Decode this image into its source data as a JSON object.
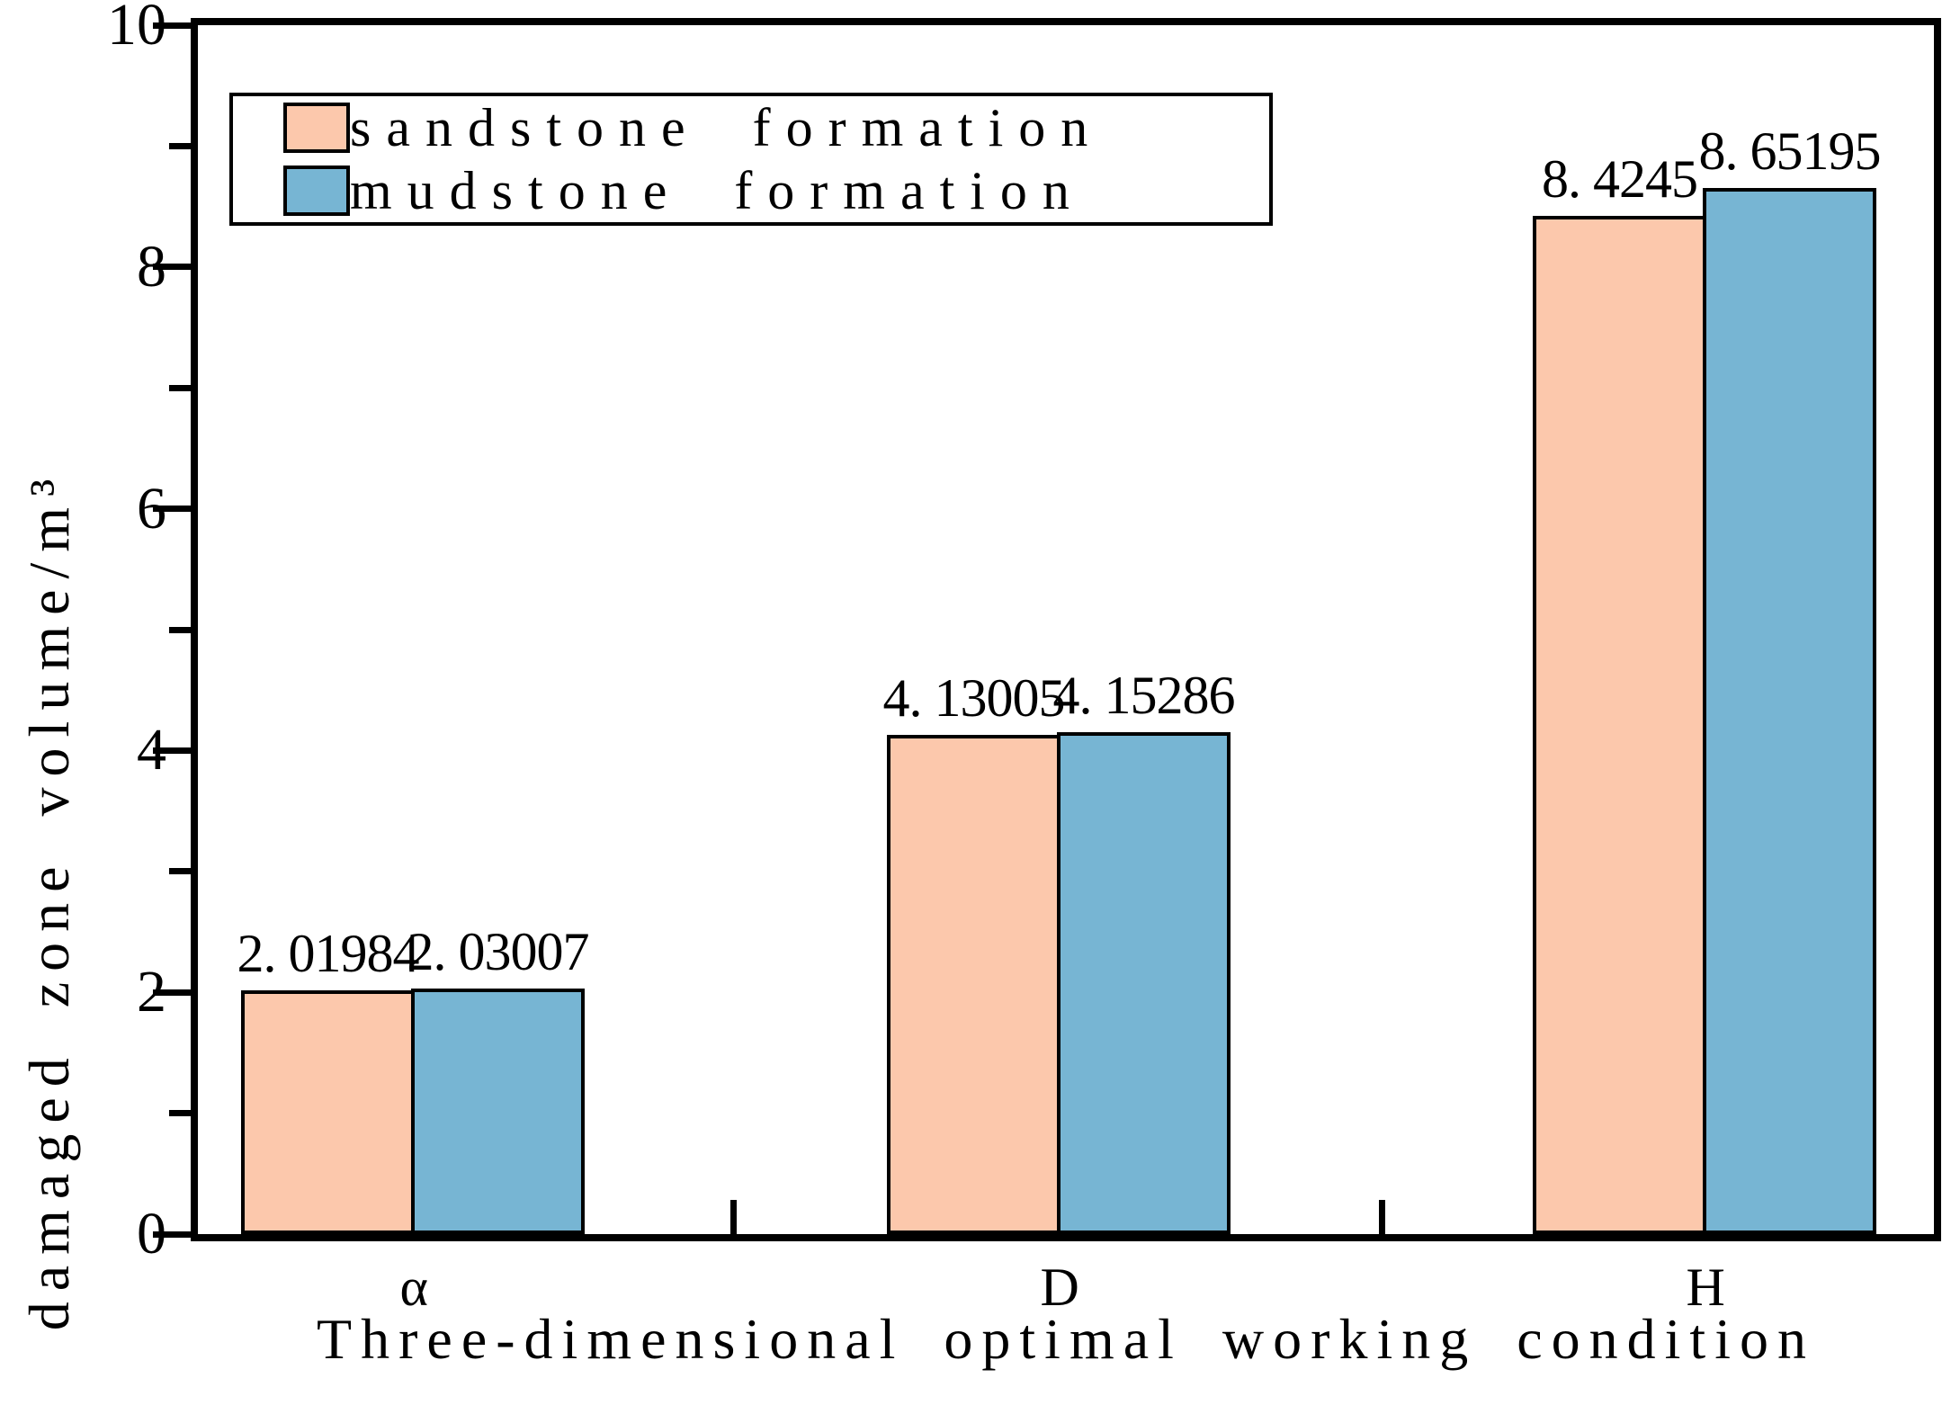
{
  "chart_data": {
    "type": "bar",
    "title": "",
    "xlabel": "Three-dimensional optimal working condition",
    "ylabel": "damaged zone volume/m³",
    "categories": [
      "α",
      "D",
      "H"
    ],
    "series": [
      {
        "name": "sandstone formation",
        "color": "#FCC8AC",
        "values": [
          2.01984,
          4.13005,
          8.4245
        ],
        "labels": [
          "2. 01984",
          "4. 13005",
          "8. 4245"
        ]
      },
      {
        "name": "mudstone formation",
        "color": "#77B5D3",
        "values": [
          2.03007,
          4.15286,
          8.65195
        ],
        "labels": [
          "2. 03007",
          "4. 15286",
          "8. 65195"
        ]
      }
    ],
    "ylim": [
      0,
      10
    ],
    "y_major_ticks": [
      0,
      2,
      4,
      6,
      8,
      10
    ],
    "y_minor_ticks": [
      1,
      3,
      5,
      7,
      9
    ],
    "grid": false,
    "legend_position": "top-left",
    "bar_border_color": "#000000",
    "axis_color": "#000000",
    "background": "#FFFFFF"
  }
}
